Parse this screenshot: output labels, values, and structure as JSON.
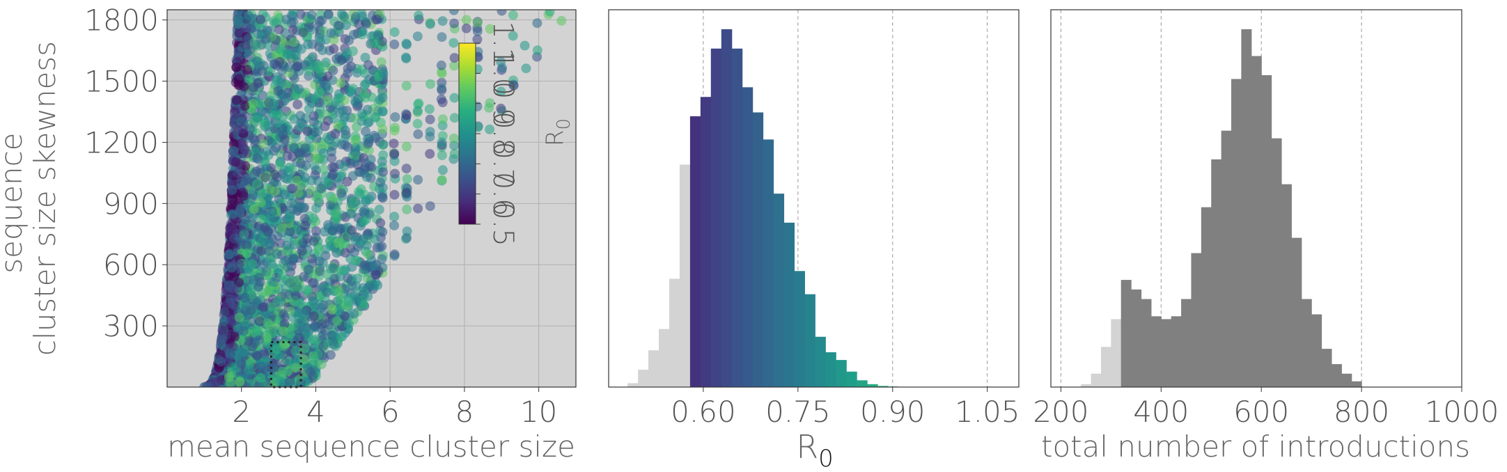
{
  "chart_data": [
    {
      "type": "scatter",
      "xlabel": "mean sequence cluster size",
      "ylabel_lines": [
        "sequence",
        "cluster size skewness"
      ],
      "xlim": [
        0,
        11
      ],
      "ylim": [
        0,
        1850
      ],
      "xticks": [
        2,
        4,
        6,
        8,
        10
      ],
      "yticks": [
        300,
        600,
        900,
        1200,
        1500,
        1800
      ],
      "xtick_labels": [
        "2",
        "4",
        "6",
        "8",
        "10"
      ],
      "ytick_labels": [
        "300",
        "600",
        "900",
        "1200",
        "1500",
        "1800"
      ],
      "grid": true,
      "background": "#d3d3d3",
      "colormap": "viridis",
      "color_variable": "R0",
      "colorbar": {
        "label": "R",
        "label_sub": "0",
        "range": [
          0.5,
          1.1
        ],
        "ticks": [
          0.5,
          0.6,
          0.7,
          0.8,
          0.9,
          1.0,
          1.1
        ],
        "tick_labels": [
          "0.5",
          "0.6",
          "0.7",
          "0.8",
          "0.9",
          "1.0",
          "1.1"
        ]
      },
      "highlight_box": {
        "x": [
          2.8,
          3.6
        ],
        "y": [
          0,
          220
        ]
      }
    },
    {
      "type": "bar",
      "xlabel": "R",
      "xlabel_sub": "0",
      "xlim": [
        0.45,
        1.1
      ],
      "xticks": [
        0.6,
        0.75,
        0.9,
        1.05
      ],
      "xtick_labels": [
        "0.60",
        "0.75",
        "0.90",
        "1.05"
      ],
      "bin_start": 0.48,
      "bin_width": 0.0165,
      "counts": [
        20,
        90,
        190,
        300,
        560,
        1150,
        1400,
        1500,
        1750,
        1850,
        1750,
        1550,
        1420,
        1280,
        1000,
        850,
        600,
        480,
        260,
        180,
        140,
        80,
        35,
        15,
        6,
        3
      ],
      "highlight_range": [
        0.58,
        0.92
      ],
      "grey": "#d3d3d3",
      "colormap": "viridis"
    },
    {
      "type": "bar",
      "xlabel": "total number of introductions",
      "xlim": [
        180,
        1000
      ],
      "xticks": [
        200,
        400,
        600,
        800,
        1000
      ],
      "xtick_labels": [
        "200",
        "400",
        "600",
        "800",
        "1000"
      ],
      "bin_start": 240,
      "bin_width": 20,
      "counts": [
        15,
        70,
        210,
        355,
        560,
        510,
        460,
        370,
        355,
        370,
        460,
        700,
        940,
        1190,
        1340,
        1610,
        1870,
        1730,
        1630,
        1300,
        1060,
        780,
        460,
        380,
        200,
        120,
        70,
        30
      ],
      "highlight_range": [
        320,
        840
      ],
      "color": "#808080",
      "grey": "#d3d3d3"
    }
  ]
}
